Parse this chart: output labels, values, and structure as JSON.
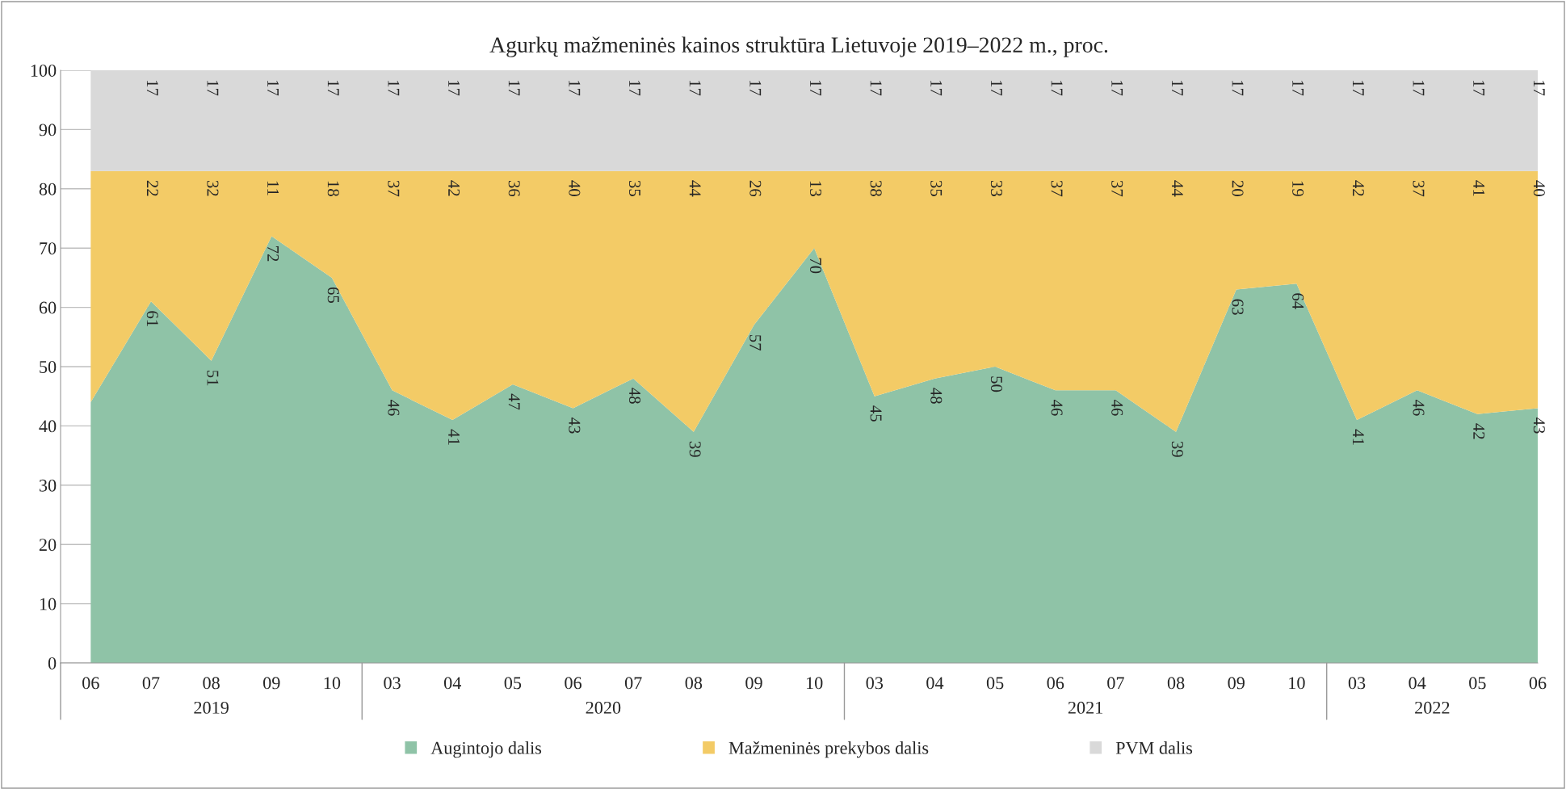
{
  "chart_data": {
    "type": "area",
    "stacked": true,
    "title": "Agurkų mažmeninės kainos struktūra Lietuvoje 2019–2022 m., proc.",
    "categories": [
      "06",
      "07",
      "08",
      "09",
      "10",
      "03",
      "04",
      "05",
      "06",
      "07",
      "08",
      "09",
      "10",
      "03",
      "04",
      "05",
      "06",
      "07",
      "08",
      "09",
      "10",
      "03",
      "04",
      "05",
      "06"
    ],
    "annotations": [
      "2019",
      "2020",
      "2021",
      "2022"
    ],
    "series": [
      {
        "name": "Augintojo dalis",
        "color": "#8fc3a7",
        "values": [
          44,
          61,
          51,
          72,
          65,
          46,
          41,
          47,
          43,
          48,
          39,
          57,
          70,
          45,
          48,
          50,
          46,
          46,
          39,
          63,
          64,
          41,
          46,
          42,
          43
        ],
        "value_labels": [
          null,
          "61",
          "51",
          "72",
          "65",
          "46",
          "41",
          "47",
          "43",
          "48",
          "39",
          "57",
          "70",
          "45",
          "48",
          "50",
          "46",
          "46",
          "39",
          "63",
          "64",
          "41",
          "46",
          "42",
          "43"
        ]
      },
      {
        "name": "Mažmeninės prekybos dalis",
        "color": "#f3cb66",
        "values": [
          39,
          22,
          32,
          11,
          18,
          37,
          42,
          36,
          40,
          35,
          44,
          26,
          13,
          38,
          35,
          33,
          37,
          37,
          44,
          20,
          19,
          42,
          37,
          41,
          40
        ],
        "value_labels": [
          null,
          "22",
          "32",
          "11",
          "18",
          "37",
          "42",
          "36",
          "40",
          "35",
          "44",
          "26",
          "13",
          "38",
          "35",
          "33",
          "37",
          "37",
          "44",
          "20",
          "19",
          "42",
          "37",
          "41",
          "40"
        ]
      },
      {
        "name": "PVM dalis",
        "color": "#d9d9d9",
        "values": [
          17,
          17,
          17,
          17,
          17,
          17,
          17,
          17,
          17,
          17,
          17,
          17,
          17,
          17,
          17,
          17,
          17,
          17,
          17,
          17,
          17,
          17,
          17,
          17,
          17
        ],
        "value_labels": [
          null,
          "17",
          "17",
          "17",
          "17",
          "17",
          "17",
          "17",
          "17",
          "17",
          "17",
          "17",
          "17",
          "17",
          "17",
          "17",
          "17",
          "17",
          "17",
          "17",
          "17",
          "17",
          "17",
          "17",
          "17"
        ]
      }
    ],
    "ylim": [
      0,
      100
    ],
    "yticks": [
      0,
      10,
      20,
      30,
      40,
      50,
      60,
      70,
      80,
      90,
      100
    ],
    "grid": "y",
    "legend": "bottom"
  }
}
